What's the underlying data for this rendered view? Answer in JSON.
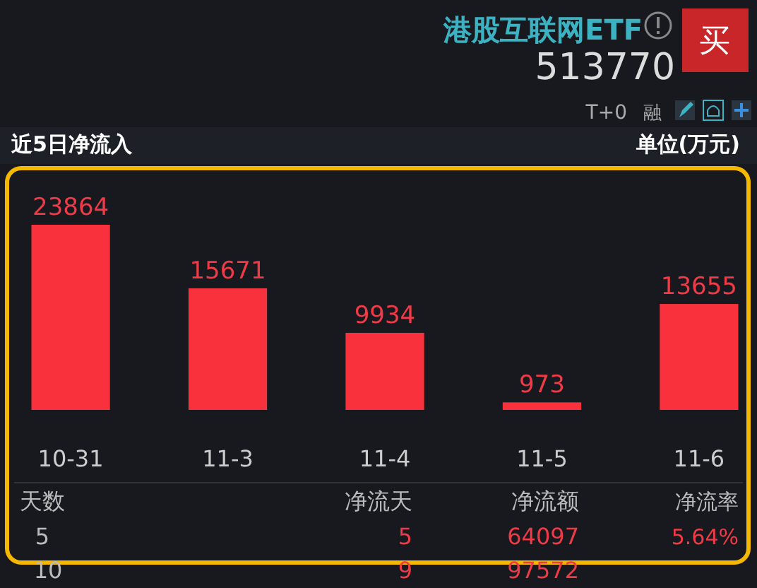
{
  "chart_data": {
    "type": "bar",
    "title": "近5日净流入",
    "subtitle": "单位(万元)",
    "categories": [
      "10-31",
      "11-3",
      "11-4",
      "11-5",
      "11-6"
    ],
    "values": [
      23864,
      15671,
      9934,
      973,
      13655
    ],
    "color": "#f8313d",
    "data_labels": true,
    "annotations": [
      "港股互联网ETF",
      "513770",
      "买",
      "T+0",
      "融",
      "天数",
      "净流天",
      "净流额",
      "净流率",
      "5",
      "5",
      "64097",
      "5.64%",
      "10",
      "9",
      "97572"
    ]
  }
}
